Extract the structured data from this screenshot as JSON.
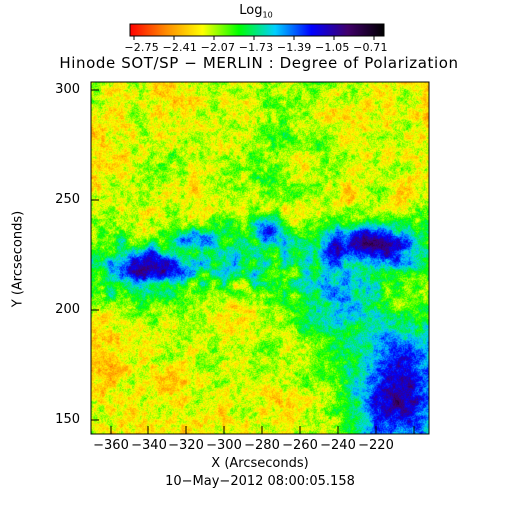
{
  "colorbar": {
    "title": "Log",
    "title_sub": "10",
    "tick_labels": [
      "−2.75",
      "−2.41",
      "−2.07",
      "−1.73",
      "−1.39",
      "−1.05",
      "−0.71"
    ],
    "colors": [
      "#ff0000",
      "#ff8c00",
      "#ffff00",
      "#00ff00",
      "#00cfff",
      "#0000ff",
      "#40006a",
      "#000000"
    ]
  },
  "title": "Hinode SOT/SP − MERLIN : Degree of Polarization",
  "axes": {
    "xlabel": "X (Arcseconds)",
    "ylabel": "Y (Arcseconds)",
    "x_ticks": [
      "−360",
      "−340",
      "−320",
      "−300",
      "−280",
      "−260",
      "−240",
      "−220"
    ],
    "y_ticks": [
      "300",
      "250",
      "200",
      "150"
    ]
  },
  "timestamp": "10−May−2012 08:00:05.158"
}
